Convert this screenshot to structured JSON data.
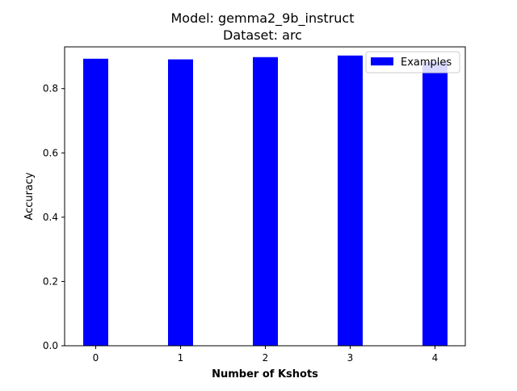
{
  "chart_data": {
    "type": "bar",
    "title_line1": "Model: gemma2_9b_instruct",
    "title_line2": "Dataset: arc",
    "xlabel": "Number of Kshots",
    "ylabel": "Accuracy",
    "categories": [
      "0",
      "1",
      "2",
      "3",
      "4"
    ],
    "series": [
      {
        "name": "Examples",
        "values": [
          0.893,
          0.891,
          0.898,
          0.903,
          0.883
        ],
        "color": "#0000ff"
      }
    ],
    "ylim": [
      0,
      0.93
    ],
    "yticks": [
      0.0,
      0.2,
      0.4,
      0.6,
      0.8
    ],
    "ytick_labels": [
      "0.0",
      "0.2",
      "0.4",
      "0.6",
      "0.8"
    ],
    "grid": false,
    "legend_position": "top-right"
  }
}
